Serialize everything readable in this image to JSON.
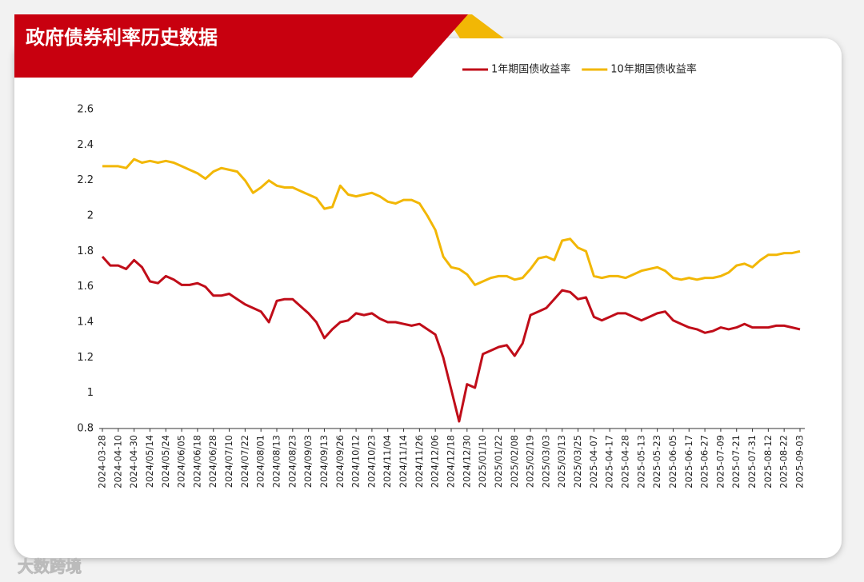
{
  "chart_data": {
    "type": "line",
    "title": "政府债券利率历史数据",
    "categories": [
      "2024-03-28",
      null,
      "2024-04-10",
      null,
      "2024-04-30",
      null,
      "2024/05/14",
      null,
      "2024/05/24",
      null,
      "2024/06/05",
      null,
      "2024/06/18",
      null,
      "2024/06/28",
      null,
      "2024/07/10",
      null,
      "2024/07/22",
      null,
      "2024/08/01",
      null,
      "2024/08/13",
      null,
      "2024/08/23",
      null,
      "2024/09/03",
      null,
      "2024/09/13",
      null,
      "2024/09/26",
      null,
      "2024/10/12",
      null,
      "2024/10/23",
      null,
      "2024/11/04",
      null,
      "2024/11/14",
      null,
      "2024/11/26",
      null,
      "2024/12/06",
      null,
      "2024/12/18",
      null,
      "2024/12/30",
      null,
      "2025/01/10",
      null,
      "2025/01/22",
      null,
      "2025/02/08",
      null,
      "2025/02/19",
      null,
      "2025/03/03",
      null,
      "2025/03/13",
      null,
      "2025/03/25",
      null,
      "2025-04-07",
      null,
      "2025-04-17",
      null,
      "2025-04-28",
      null,
      "2025-05-13",
      null,
      "2025-05-23",
      null,
      "2025-06-05",
      null,
      "2025-06-17",
      null,
      "2025-06-27",
      null,
      "2025-07-09",
      null,
      "2025-07-21",
      null,
      "2025-07-31",
      null,
      "2025-08-12",
      null,
      "2025-08-22",
      null,
      "2025-09-03"
    ],
    "series": [
      {
        "name": "1年期国债收益率",
        "color": "#c00d19",
        "values": [
          1.77,
          1.72,
          1.72,
          1.7,
          1.75,
          1.71,
          1.63,
          1.62,
          1.66,
          1.64,
          1.61,
          1.61,
          1.62,
          1.6,
          1.55,
          1.55,
          1.56,
          1.53,
          1.5,
          1.48,
          1.46,
          1.4,
          1.52,
          1.53,
          1.53,
          1.49,
          1.45,
          1.4,
          1.31,
          1.36,
          1.4,
          1.41,
          1.45,
          1.44,
          1.45,
          1.42,
          1.4,
          1.4,
          1.39,
          1.38,
          1.39,
          1.36,
          1.33,
          1.2,
          1.02,
          0.84,
          1.05,
          1.03,
          1.22,
          1.24,
          1.26,
          1.27,
          1.21,
          1.28,
          1.44,
          1.46,
          1.48,
          1.53,
          1.58,
          1.57,
          1.53,
          1.54,
          1.43,
          1.41,
          1.43,
          1.45,
          1.45,
          1.43,
          1.41,
          1.43,
          1.45,
          1.46,
          1.41,
          1.39,
          1.37,
          1.36,
          1.34,
          1.35,
          1.37,
          1.36,
          1.37,
          1.39,
          1.37,
          1.37,
          1.37,
          1.38,
          1.38,
          1.37,
          1.36
        ]
      },
      {
        "name": "10年期国债收益率",
        "color": "#f2b705",
        "values": [
          2.28,
          2.28,
          2.28,
          2.27,
          2.32,
          2.3,
          2.31,
          2.3,
          2.31,
          2.3,
          2.28,
          2.26,
          2.24,
          2.21,
          2.25,
          2.27,
          2.26,
          2.25,
          2.2,
          2.13,
          2.16,
          2.2,
          2.17,
          2.16,
          2.16,
          2.14,
          2.12,
          2.1,
          2.04,
          2.05,
          2.17,
          2.12,
          2.11,
          2.12,
          2.13,
          2.11,
          2.08,
          2.07,
          2.09,
          2.09,
          2.07,
          2.0,
          1.92,
          1.77,
          1.71,
          1.7,
          1.67,
          1.61,
          1.63,
          1.65,
          1.66,
          1.66,
          1.64,
          1.65,
          1.7,
          1.76,
          1.77,
          1.75,
          1.86,
          1.87,
          1.82,
          1.8,
          1.66,
          1.65,
          1.66,
          1.66,
          1.65,
          1.67,
          1.69,
          1.7,
          1.71,
          1.69,
          1.65,
          1.64,
          1.65,
          1.64,
          1.65,
          1.65,
          1.66,
          1.68,
          1.72,
          1.73,
          1.71,
          1.75,
          1.78,
          1.78,
          1.79,
          1.79,
          1.8
        ]
      }
    ],
    "ylim": [
      0.8,
      2.6
    ],
    "yticks": [
      0.8,
      1,
      1.2,
      1.4,
      1.6,
      1.8,
      2,
      2.2,
      2.4,
      2.6
    ]
  },
  "watermark": "大数跨境"
}
